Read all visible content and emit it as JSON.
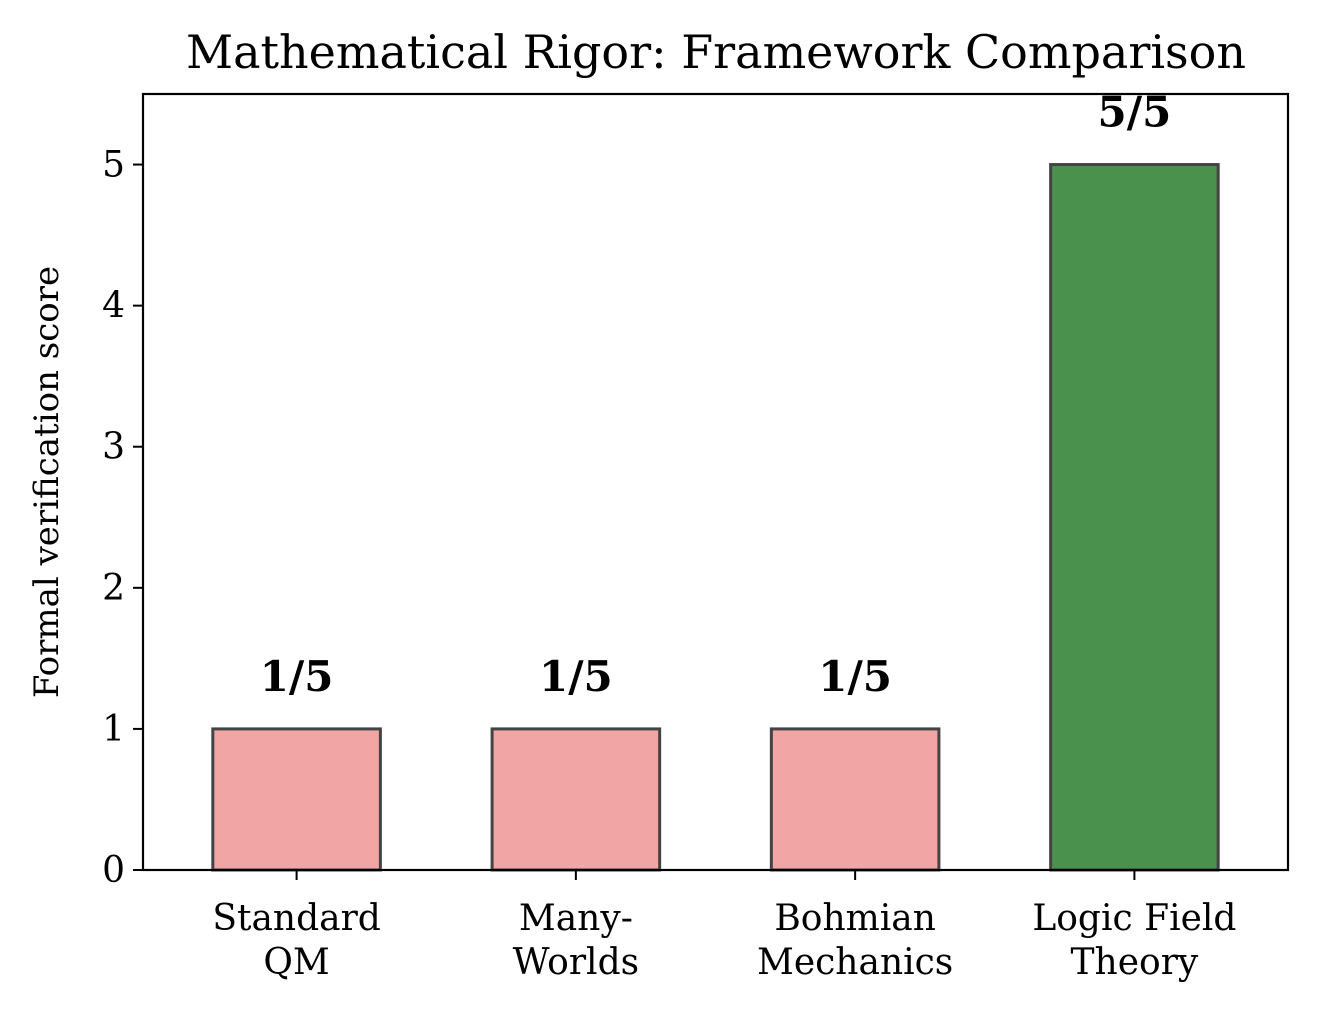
{
  "chart_data": {
    "type": "bar",
    "title": "Mathematical Rigor: Framework Comparison",
    "xlabel": "",
    "ylabel": "Formal verification score",
    "categories": [
      [
        "Standard",
        "QM"
      ],
      [
        "Many-",
        "Worlds"
      ],
      [
        "Bohmian",
        "Mechanics"
      ],
      [
        "Logic Field",
        "Theory"
      ]
    ],
    "values": [
      1,
      1,
      1,
      5
    ],
    "data_labels": [
      "1/5",
      "1/5",
      "1/5",
      "5/5"
    ],
    "bar_colors": [
      "#f2a5a5",
      "#f2a5a5",
      "#f2a5a5",
      "#4a914d"
    ],
    "bar_edge_color": "#444444",
    "ylim": [
      0,
      5.5
    ],
    "yticks": [
      0,
      1,
      2,
      3,
      4,
      5
    ],
    "grid": false,
    "legend": "none"
  }
}
